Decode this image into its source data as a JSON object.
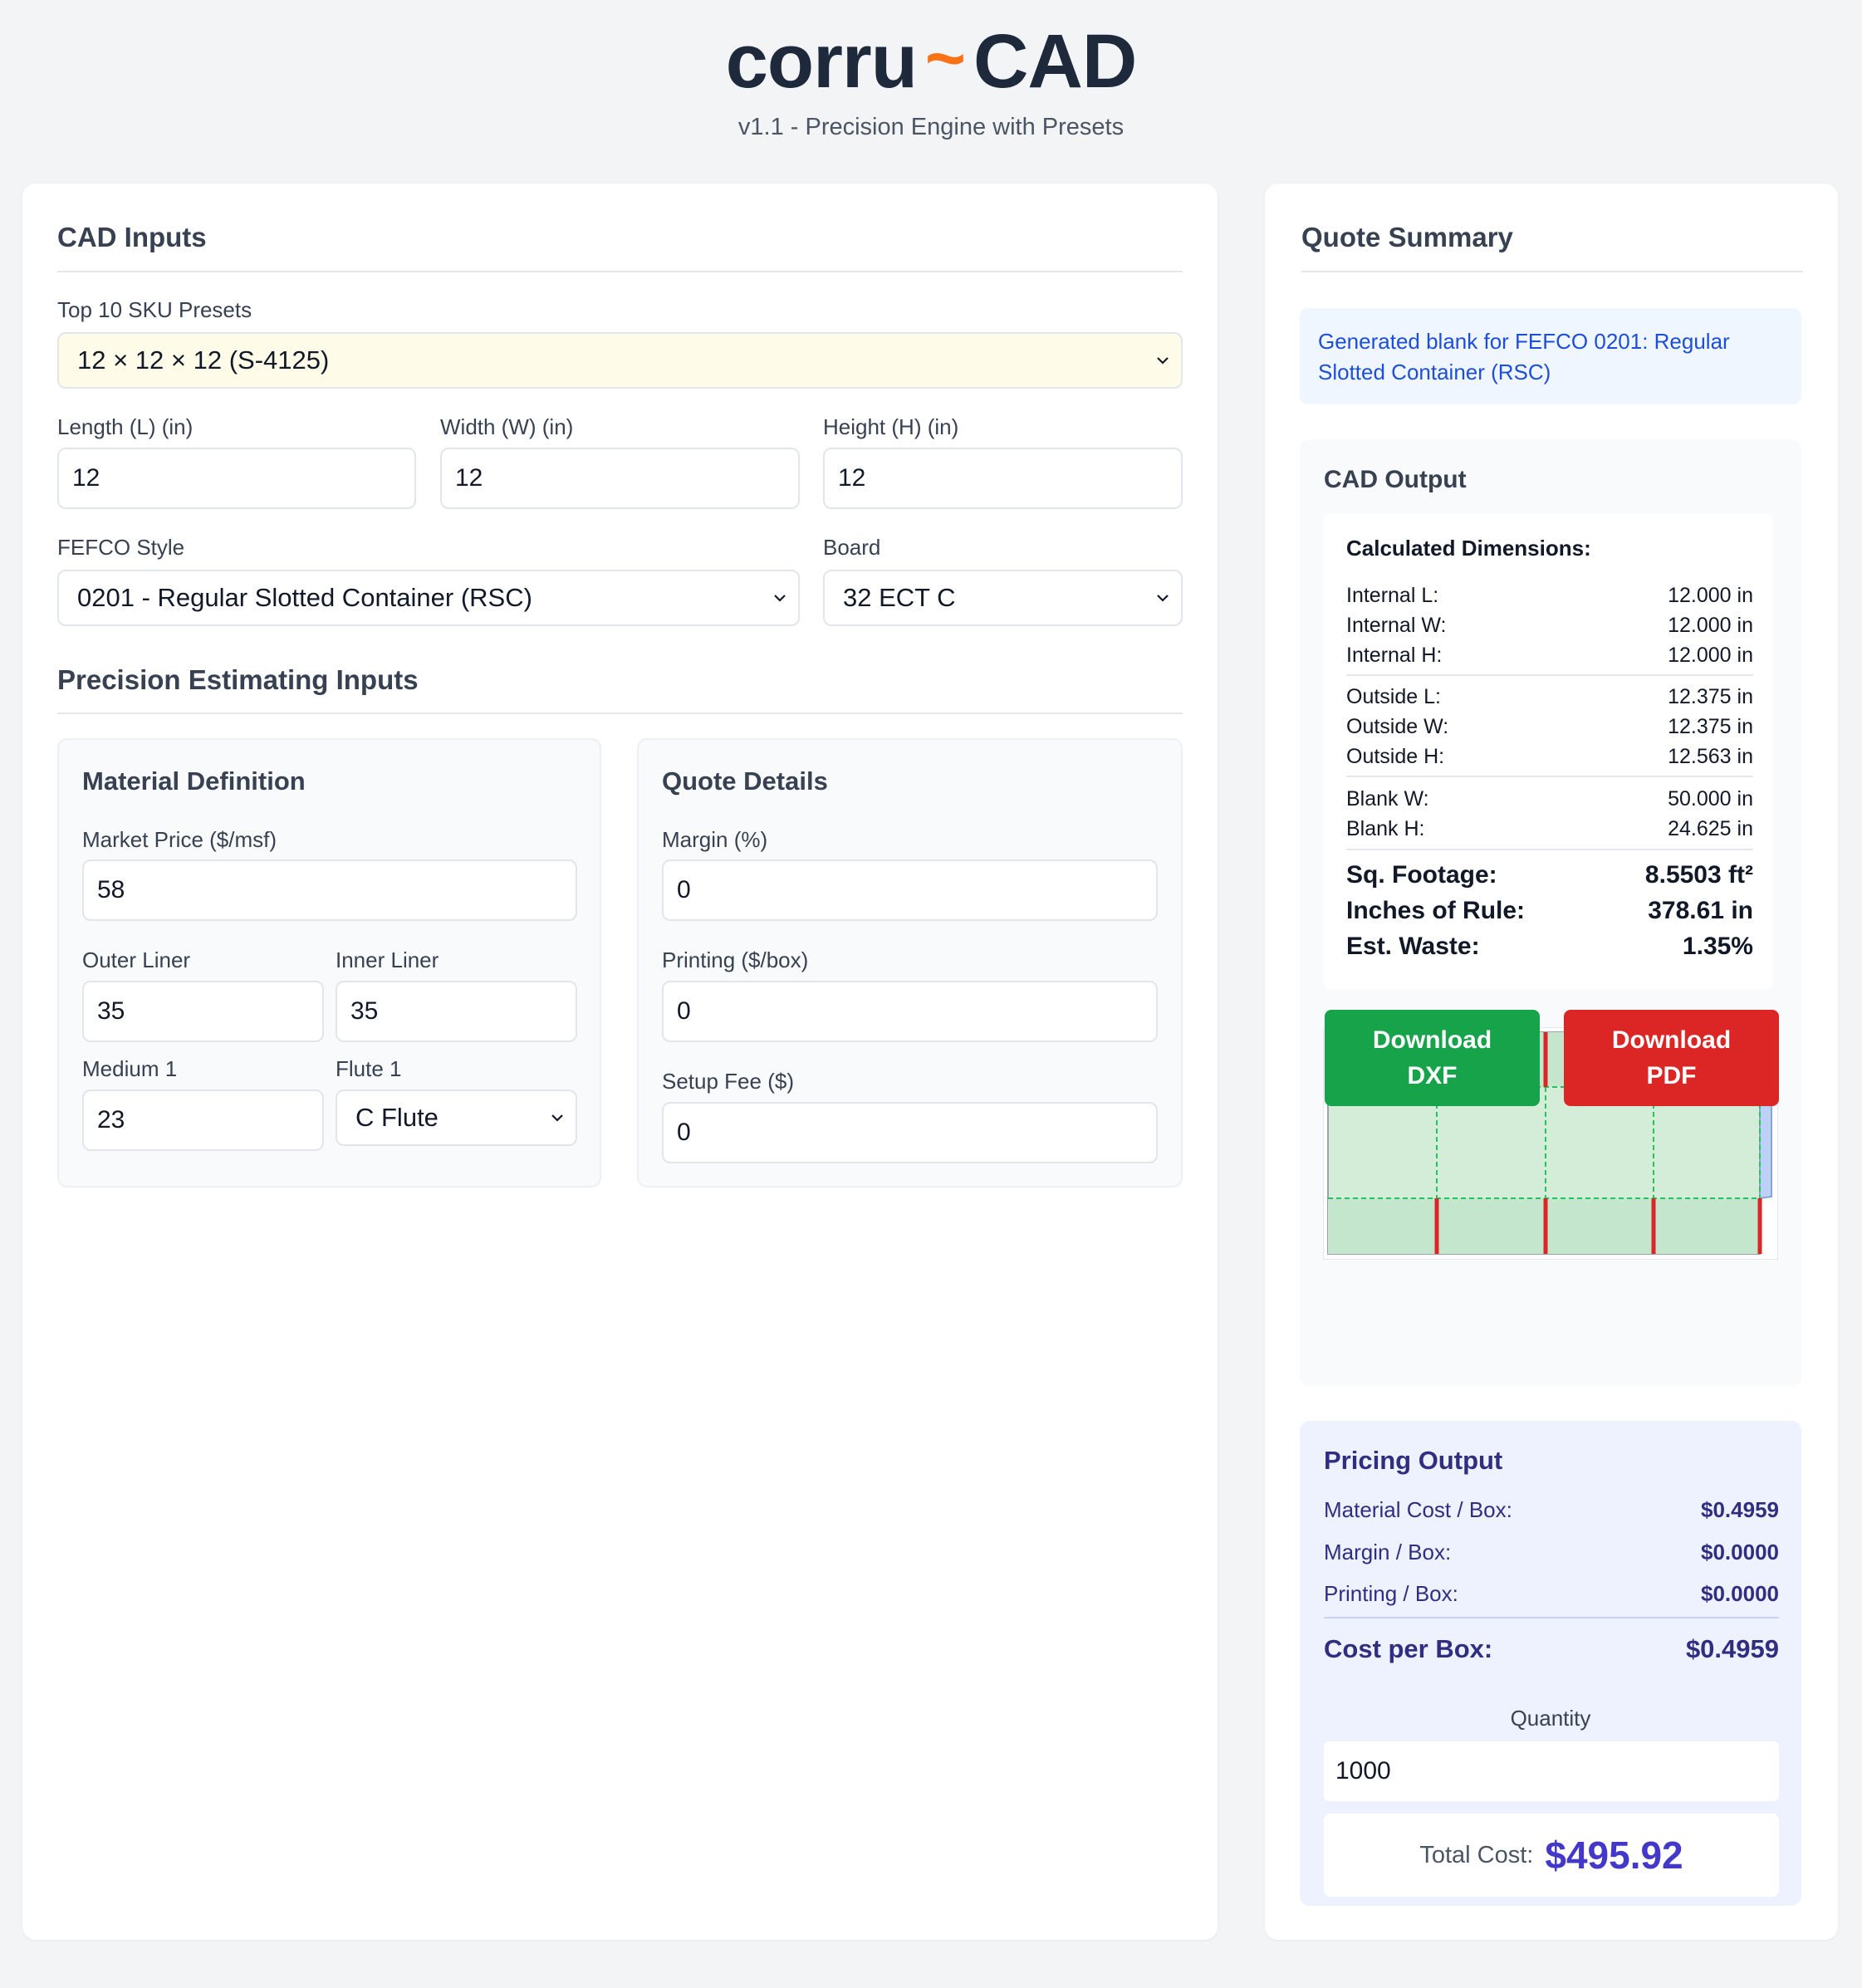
{
  "header": {
    "logo_left": "corru",
    "logo_tilde": "~",
    "logo_right": "CAD",
    "subtitle": "v1.1 - Precision Engine with Presets"
  },
  "cad_inputs": {
    "title": "CAD Inputs",
    "preset_label": "Top 10 SKU Presets",
    "preset_value": "12 × 12 × 12 (S-4125)",
    "length_label": "Length (L) (in)",
    "length_value": "12",
    "width_label": "Width (W) (in)",
    "width_value": "12",
    "height_label": "Height (H) (in)",
    "height_value": "12",
    "fefco_label": "FEFCO Style",
    "fefco_value": "0201 - Regular Slotted Container (RSC)",
    "board_label": "Board",
    "board_value": "32 ECT C"
  },
  "precision": {
    "title": "Precision Estimating Inputs",
    "material": {
      "title": "Material Definition",
      "market_label": "Market Price ($/msf)",
      "market_value": "58",
      "outer_label": "Outer Liner",
      "outer_value": "35",
      "inner_label": "Inner Liner",
      "inner_value": "35",
      "medium_label": "Medium 1",
      "medium_value": "23",
      "flute_label": "Flute 1",
      "flute_value": "C Flute"
    },
    "quote": {
      "title": "Quote Details",
      "margin_label": "Margin (%)",
      "margin_value": "0",
      "printing_label": "Printing ($/box)",
      "printing_value": "0",
      "setup_label": "Setup Fee ($)",
      "setup_value": "0"
    }
  },
  "summary": {
    "title": "Quote Summary",
    "info": "Generated blank for FEFCO 0201: Regular Slotted Container (RSC)",
    "cad_output_title": "CAD Output",
    "calc_title": "Calculated Dimensions:",
    "dims": [
      {
        "label": "Internal L:",
        "value": "12.000 in"
      },
      {
        "label": "Internal W:",
        "value": "12.000 in"
      },
      {
        "label": "Internal H:",
        "value": "12.000 in"
      },
      {
        "label": "Outside L:",
        "value": "12.375 in"
      },
      {
        "label": "Outside W:",
        "value": "12.375 in"
      },
      {
        "label": "Outside H:",
        "value": "12.563 in"
      },
      {
        "label": "Blank W:",
        "value": "50.000 in"
      },
      {
        "label": "Blank H:",
        "value": "24.625 in"
      }
    ],
    "big": [
      {
        "label": "Sq. Footage:",
        "value": "8.5503 ft²"
      },
      {
        "label": "Inches of Rule:",
        "value": "378.61 in"
      },
      {
        "label": "Est. Waste:",
        "value": "1.35%"
      }
    ],
    "download_dxf": "Download DXF",
    "download_pdf": "Download PDF"
  },
  "pricing": {
    "title": "Pricing Output",
    "rows": [
      {
        "label": "Material Cost / Box:",
        "value": "$0.4959"
      },
      {
        "label": "Margin / Box:",
        "value": "$0.0000"
      },
      {
        "label": "Printing / Box:",
        "value": "$0.0000"
      }
    ],
    "cost_label": "Cost per Box:",
    "cost_value": "$0.4959",
    "quantity_label": "Quantity",
    "quantity_value": "1000",
    "total_label": "Total Cost:",
    "total_value": "$495.92"
  },
  "colors": {
    "accent_orange": "#f97316",
    "dxf_green": "#16a34a",
    "pdf_red": "#dc2626",
    "panel_fill": "#d4edd9",
    "cut_line": "#dc2626",
    "crease_line": "#22c55e"
  }
}
